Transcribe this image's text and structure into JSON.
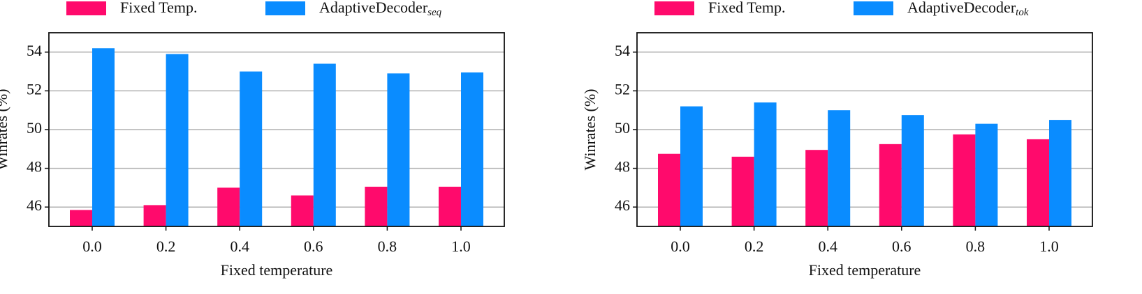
{
  "chart_data": [
    {
      "type": "bar",
      "ylabel": "Winrates (%)",
      "xlabel": "Fixed temperature",
      "categories": [
        "0.0",
        "0.2",
        "0.4",
        "0.6",
        "0.8",
        "1.0"
      ],
      "series": [
        {
          "name": "Fixed Temp.",
          "color": "#ff0a6c",
          "values": [
            45.85,
            46.1,
            47.0,
            46.6,
            47.05,
            47.05
          ]
        },
        {
          "name": "AdaptiveDecoder",
          "subscript": "seq",
          "color": "#0a8cff",
          "values": [
            54.2,
            53.9,
            53.0,
            53.4,
            52.9,
            52.95
          ]
        }
      ],
      "ylim": [
        45,
        55
      ],
      "yticks": [
        46,
        48,
        50,
        52,
        54
      ],
      "grid": true,
      "legend": "top"
    },
    {
      "type": "bar",
      "ylabel": "Winrates (%)",
      "xlabel": "Fixed temperature",
      "categories": [
        "0.0",
        "0.2",
        "0.4",
        "0.6",
        "0.8",
        "1.0"
      ],
      "series": [
        {
          "name": "Fixed Temp.",
          "color": "#ff0a6c",
          "values": [
            48.75,
            48.6,
            48.95,
            49.25,
            49.75,
            49.5
          ]
        },
        {
          "name": "AdaptiveDecoder",
          "subscript": "tok",
          "color": "#0a8cff",
          "values": [
            51.2,
            51.4,
            51.0,
            50.75,
            50.3,
            50.5
          ]
        }
      ],
      "ylim": [
        45,
        55
      ],
      "yticks": [
        46,
        48,
        50,
        52,
        54
      ],
      "grid": true,
      "legend": "top"
    }
  ]
}
